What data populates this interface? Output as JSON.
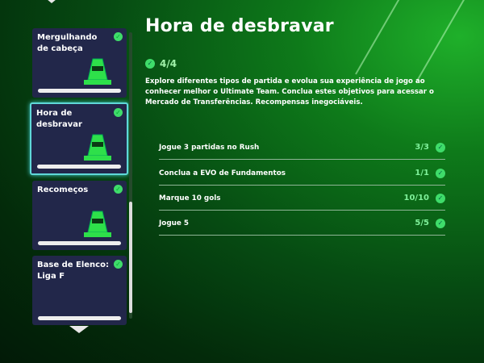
{
  "title": "Hora de desbravar",
  "progress": "4/4",
  "description": "Explore diferentes tipos de partida e evolua sua experiência de jogo ao conhecer melhor o Ultimate Team. Conclua estes objetivos para acessar o Mercado de Transferências. Recompensas inegociáveis.",
  "cards": [
    {
      "title": "Mergulhando de cabeça",
      "completed": true,
      "icon": "traffic-cone-icon"
    },
    {
      "title": "Hora de desbravar",
      "completed": true,
      "selected": true,
      "icon": "traffic-cone-icon"
    },
    {
      "title": "Recomeços",
      "completed": true,
      "icon": "traffic-cone-icon"
    },
    {
      "title": "Base de Elenco: Liga F",
      "completed": true
    }
  ],
  "objectives": [
    {
      "name": "Jogue 3 partidas no Rush",
      "value": "3/3"
    },
    {
      "name": "Conclua a EVO de Fundamentos",
      "value": "1/1"
    },
    {
      "name": "Marque 10 gols",
      "value": "10/10"
    },
    {
      "name": "Jogue 5",
      "value": "5/5"
    }
  ],
  "colors": {
    "accent": "#3fdc6a",
    "selected_border": "#5fd8d8",
    "card_bg": "#22274a"
  }
}
